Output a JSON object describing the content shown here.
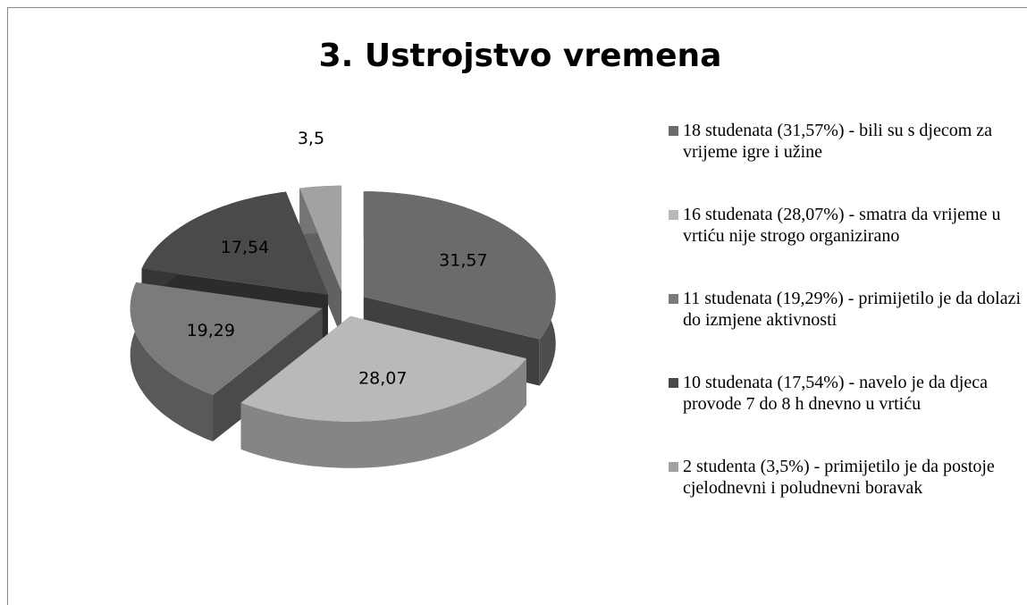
{
  "chart_data": {
    "type": "pie3d",
    "title": "3. Ustrojstvo vremena",
    "categories": [
      "18 studenata (31,57%) - bili su s djecom za vrijeme igre i užine",
      "16 studenata (28,07%) - smatra da vrijeme u vrtiću nije strogo organizirano",
      "11 studenata (19,29%) - primijetilo je da dolazi do izmjene aktivnosti",
      "10 studenata (17,54%) - navelo je da djeca provode 7 do 8 h dnevno u vrtiću",
      "2 studenta (3,5%) - primijetilo je da postoje cjelodnevni i poludnevni boravak"
    ],
    "values": [
      31.57,
      28.07,
      19.29,
      17.54,
      3.5
    ],
    "value_labels": [
      "31,57",
      "28,07",
      "19,29",
      "17,54",
      "3,5"
    ],
    "colors": [
      "#6b6b6b",
      "#b9b9b9",
      "#7b7b7b",
      "#4a4a4a",
      "#a2a2a2"
    ],
    "legend": "right"
  }
}
